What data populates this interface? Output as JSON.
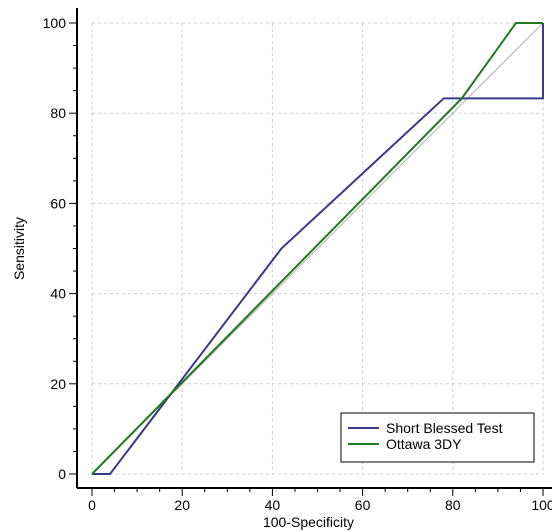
{
  "chart_data": {
    "type": "line",
    "title": "",
    "xlabel": "100-Specificity",
    "ylabel": "Sensitivity",
    "xlim": [
      0,
      100
    ],
    "ylim": [
      0,
      100
    ],
    "x_ticks": [
      "0",
      "20",
      "40",
      "60",
      "80",
      "100"
    ],
    "y_ticks": [
      "0",
      "20",
      "40",
      "60",
      "80",
      "100"
    ],
    "grid": true,
    "legend_position": "bottom-right",
    "diagonal_reference": true,
    "series": [
      {
        "name": "Short Blessed Test",
        "color": "#3a3a8c",
        "points": [
          [
            0,
            0
          ],
          [
            4,
            0
          ],
          [
            42,
            50
          ],
          [
            78,
            83.3
          ],
          [
            100,
            83.3
          ],
          [
            100,
            100
          ]
        ]
      },
      {
        "name": "Ottawa 3DY",
        "color": "#1f7a1f",
        "points": [
          [
            0,
            0
          ],
          [
            82,
            83.3
          ],
          [
            94,
            100
          ],
          [
            100,
            100
          ]
        ]
      }
    ]
  }
}
